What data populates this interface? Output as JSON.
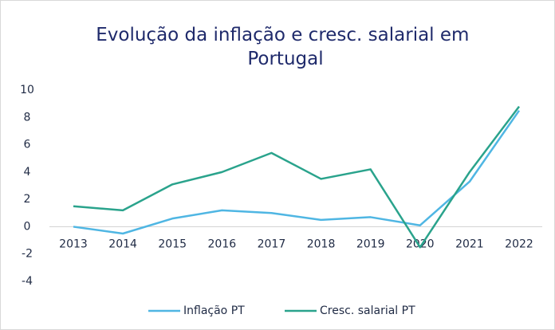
{
  "chart_data": {
    "type": "line",
    "title": "Evolução da inflação e cresc. salarial em Portugal",
    "categories": [
      "2013",
      "2014",
      "2015",
      "2016",
      "2017",
      "2018",
      "2019",
      "2020",
      "2021",
      "2022"
    ],
    "series": [
      {
        "name": "Inflação PT",
        "color": "#4fb6e3",
        "values": [
          0.0,
          -0.5,
          0.6,
          1.2,
          1.0,
          0.5,
          0.7,
          0.1,
          3.3,
          8.5
        ]
      },
      {
        "name": "Cresc. salarial PT",
        "color": "#2aa38c",
        "values": [
          1.5,
          1.2,
          3.1,
          4.0,
          5.4,
          3.5,
          4.2,
          -1.5,
          4.0,
          8.8
        ]
      }
    ],
    "ylim": [
      -4,
      10
    ],
    "yticks": [
      -4,
      -2,
      0,
      2,
      4,
      6,
      8,
      10
    ],
    "grid": false,
    "legend": "bottom"
  }
}
